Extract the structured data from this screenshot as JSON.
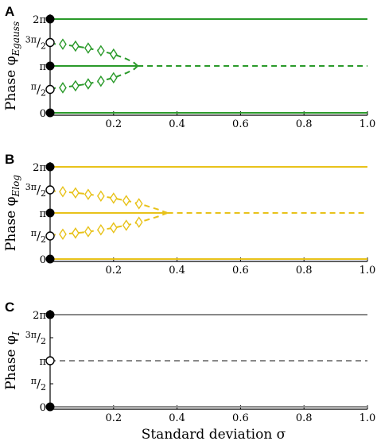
{
  "chart_data": [
    {
      "type": "line",
      "panel": "A",
      "ylabel": "Phase φ",
      "ylabel_sub": "E_gauss",
      "xlabel": "",
      "xlim": [
        0,
        1.0
      ],
      "ylim": [
        0,
        6.283
      ],
      "xticks": [
        "0.2",
        "0.4",
        "0.6",
        "0.8",
        "1.0"
      ],
      "yticks": [
        "0",
        "π/2",
        "π",
        "3π/2",
        "2π"
      ],
      "color": "#2a9a2a",
      "stable": [
        {
          "x": [
            0,
            1.0
          ],
          "y": [
            0,
            0
          ]
        },
        {
          "x": [
            0,
            1.0
          ],
          "y": [
            6.283,
            6.283
          ]
        }
      ],
      "unstable": [
        {
          "x": [
            0.276,
            1.0
          ],
          "y": [
            3.142,
            3.142
          ]
        },
        {
          "x": [
            0.0,
            0.05,
            0.1,
            0.15,
            0.2,
            0.24,
            0.265,
            0.276
          ],
          "y": [
            4.65,
            4.55,
            4.4,
            4.2,
            3.93,
            3.62,
            3.35,
            3.142
          ]
        },
        {
          "x": [
            0.0,
            0.05,
            0.1,
            0.15,
            0.2,
            0.24,
            0.265,
            0.276
          ],
          "y": [
            1.63,
            1.73,
            1.88,
            2.08,
            2.35,
            2.66,
            2.93,
            3.142
          ]
        }
      ],
      "middle_stable_solid_to": 0.276,
      "diamonds": [
        {
          "x": 0.04,
          "y": 4.6
        },
        {
          "x": 0.08,
          "y": 4.47
        },
        {
          "x": 0.12,
          "y": 4.34
        },
        {
          "x": 0.16,
          "y": 4.16
        },
        {
          "x": 0.2,
          "y": 3.93
        },
        {
          "x": 0.04,
          "y": 1.68
        },
        {
          "x": 0.08,
          "y": 1.81
        },
        {
          "x": 0.12,
          "y": 1.94
        },
        {
          "x": 0.16,
          "y": 2.12
        },
        {
          "x": 0.2,
          "y": 2.35
        }
      ],
      "filled_points": [
        {
          "x": 0,
          "y": 0
        },
        {
          "x": 0,
          "y": 3.142
        },
        {
          "x": 0,
          "y": 6.283
        }
      ],
      "open_points": [
        {
          "x": 0,
          "y": 1.571
        },
        {
          "x": 0,
          "y": 4.712
        }
      ]
    },
    {
      "type": "line",
      "panel": "B",
      "ylabel": "Phase φ",
      "ylabel_sub": "E_log",
      "xlabel": "",
      "xlim": [
        0,
        1.0
      ],
      "ylim": [
        0,
        6.283
      ],
      "xticks": [
        "0.2",
        "0.4",
        "0.6",
        "0.8",
        "1.0"
      ],
      "yticks": [
        "0",
        "π/2",
        "π",
        "3π/2",
        "2π"
      ],
      "color": "#e8c21a",
      "stable": [
        {
          "x": [
            0,
            1.0
          ],
          "y": [
            0,
            0
          ]
        },
        {
          "x": [
            0,
            1.0
          ],
          "y": [
            6.283,
            6.283
          ]
        }
      ],
      "unstable": [
        {
          "x": [
            0.37,
            1.0
          ],
          "y": [
            3.142,
            3.142
          ]
        },
        {
          "x": [
            0.0,
            0.05,
            0.1,
            0.15,
            0.2,
            0.25,
            0.3,
            0.34,
            0.36,
            0.37
          ],
          "y": [
            4.65,
            4.57,
            4.47,
            4.33,
            4.15,
            3.93,
            3.65,
            3.38,
            3.22,
            3.142
          ]
        },
        {
          "x": [
            0.0,
            0.05,
            0.1,
            0.15,
            0.2,
            0.25,
            0.3,
            0.34,
            0.36,
            0.37
          ],
          "y": [
            1.63,
            1.71,
            1.81,
            1.95,
            2.13,
            2.35,
            2.63,
            2.9,
            3.06,
            3.142
          ]
        }
      ],
      "middle_stable_solid_to": 0.37,
      "diamonds": [
        {
          "x": 0.04,
          "y": 4.59
        },
        {
          "x": 0.08,
          "y": 4.51
        },
        {
          "x": 0.12,
          "y": 4.41
        },
        {
          "x": 0.16,
          "y": 4.29
        },
        {
          "x": 0.2,
          "y": 4.15
        },
        {
          "x": 0.24,
          "y": 3.98
        },
        {
          "x": 0.28,
          "y": 3.77
        },
        {
          "x": 0.04,
          "y": 1.69
        },
        {
          "x": 0.08,
          "y": 1.77
        },
        {
          "x": 0.12,
          "y": 1.87
        },
        {
          "x": 0.16,
          "y": 1.99
        },
        {
          "x": 0.2,
          "y": 2.13
        },
        {
          "x": 0.24,
          "y": 2.3
        },
        {
          "x": 0.28,
          "y": 2.51
        }
      ],
      "filled_points": [
        {
          "x": 0,
          "y": 0
        },
        {
          "x": 0,
          "y": 3.142
        },
        {
          "x": 0,
          "y": 6.283
        }
      ],
      "open_points": [
        {
          "x": 0,
          "y": 1.571
        },
        {
          "x": 0,
          "y": 4.712
        }
      ]
    },
    {
      "type": "line",
      "panel": "C",
      "ylabel": "Phase φ",
      "ylabel_sub": "I",
      "xlabel": "Standard deviation σ",
      "xlim": [
        0,
        1.0
      ],
      "ylim": [
        0,
        6.283
      ],
      "xticks": [
        "0.2",
        "0.4",
        "0.6",
        "0.8",
        "1.0"
      ],
      "yticks": [
        "0",
        "π/2",
        "π",
        "3π/2",
        "2π"
      ],
      "color": "#888888",
      "stable": [
        {
          "x": [
            0,
            1.0
          ],
          "y": [
            0,
            0
          ]
        },
        {
          "x": [
            0,
            1.0
          ],
          "y": [
            6.283,
            6.283
          ]
        }
      ],
      "unstable": [
        {
          "x": [
            0,
            1.0
          ],
          "y": [
            3.142,
            3.142
          ]
        }
      ],
      "middle_stable_solid_to": 0,
      "diamonds": [],
      "filled_points": [
        {
          "x": 0,
          "y": 0
        },
        {
          "x": 0,
          "y": 6.283
        }
      ],
      "open_points": [
        {
          "x": 0,
          "y": 3.142
        }
      ]
    }
  ]
}
